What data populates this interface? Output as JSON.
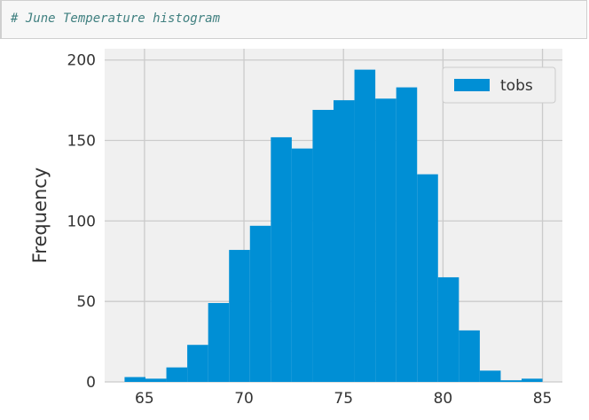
{
  "cell": {
    "comment": "# June Temperature histogram"
  },
  "colors": {
    "bar": "#008fd5",
    "plot_bg": "#f0f0f0",
    "grid": "#cbcbcb",
    "text": "#333333",
    "comment": "#408080"
  },
  "chart_data": {
    "type": "bar",
    "style": "histogram",
    "title": "",
    "xlabel": "",
    "ylabel": "Frequency",
    "xlim": [
      63,
      86
    ],
    "ylim": [
      0,
      207
    ],
    "xticks": [
      65,
      70,
      75,
      80,
      85
    ],
    "yticks": [
      0,
      50,
      100,
      150,
      200
    ],
    "grid": true,
    "legend": {
      "position": "top-right",
      "entries": [
        "tobs"
      ]
    },
    "bin_edges": [
      64,
      65.05,
      66.1,
      67.15,
      68.2,
      69.25,
      70.3,
      71.35,
      72.4,
      73.45,
      74.5,
      75.55,
      76.6,
      77.65,
      78.7,
      79.75,
      80.8,
      81.85,
      82.9,
      83.95,
      85
    ],
    "series": [
      {
        "name": "tobs",
        "values": [
          3,
          2,
          9,
          23,
          49,
          82,
          97,
          152,
          145,
          169,
          175,
          194,
          176,
          183,
          129,
          65,
          32,
          7,
          1,
          2
        ]
      }
    ]
  }
}
